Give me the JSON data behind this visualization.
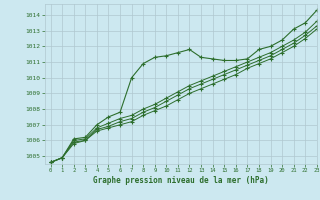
{
  "title": "Graphe pression niveau de la mer (hPa)",
  "bg_color": "#cce8f0",
  "grid_color": "#b0c8d0",
  "line_color": "#2d6e2d",
  "xlim": [
    -0.5,
    23
  ],
  "ylim": [
    1004.5,
    1014.7
  ],
  "yticks": [
    1005,
    1006,
    1007,
    1008,
    1009,
    1010,
    1011,
    1012,
    1013,
    1014
  ],
  "xticks": [
    0,
    1,
    2,
    3,
    4,
    5,
    6,
    7,
    8,
    9,
    10,
    11,
    12,
    13,
    14,
    15,
    16,
    17,
    18,
    19,
    20,
    21,
    22,
    23
  ],
  "series1": [
    1004.6,
    1004.9,
    1006.1,
    1006.2,
    1007.0,
    1007.5,
    1007.8,
    1010.0,
    1010.9,
    1011.3,
    1011.4,
    1011.6,
    1011.8,
    1011.3,
    1011.2,
    1011.1,
    1011.1,
    1011.2,
    1011.8,
    1012.0,
    1012.4,
    1013.1,
    1013.5,
    1014.3
  ],
  "series2": [
    1004.6,
    1004.9,
    1006.0,
    1006.1,
    1006.8,
    1007.1,
    1007.4,
    1007.6,
    1008.0,
    1008.3,
    1008.7,
    1009.1,
    1009.5,
    1009.8,
    1010.1,
    1010.4,
    1010.7,
    1011.0,
    1011.3,
    1011.6,
    1012.0,
    1012.4,
    1012.9,
    1013.6
  ],
  "series3": [
    1004.6,
    1004.9,
    1005.9,
    1006.0,
    1006.7,
    1006.9,
    1007.2,
    1007.4,
    1007.8,
    1008.1,
    1008.5,
    1008.9,
    1009.3,
    1009.6,
    1009.9,
    1010.2,
    1010.5,
    1010.8,
    1011.1,
    1011.4,
    1011.8,
    1012.2,
    1012.7,
    1013.3
  ],
  "series4": [
    1004.6,
    1004.9,
    1005.8,
    1006.0,
    1006.6,
    1006.8,
    1007.0,
    1007.2,
    1007.6,
    1007.9,
    1008.2,
    1008.6,
    1009.0,
    1009.3,
    1009.6,
    1009.9,
    1010.2,
    1010.6,
    1010.9,
    1011.2,
    1011.6,
    1012.0,
    1012.5,
    1013.1
  ]
}
